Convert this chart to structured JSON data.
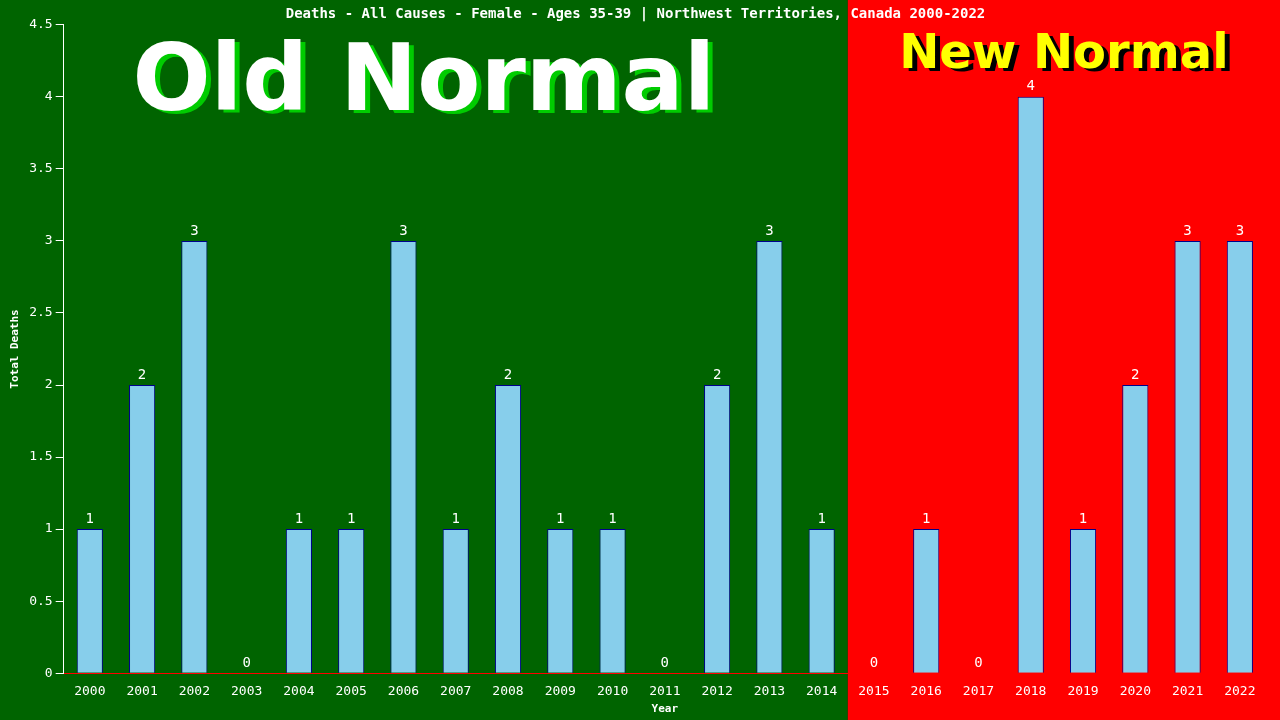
{
  "chart_data": {
    "type": "bar",
    "title": "Deaths - All Causes - Female - Ages 35-39 | Northwest Territories, Canada 2000-2022",
    "xlabel": "Year",
    "ylabel": "Total Deaths",
    "categories": [
      "2000",
      "2001",
      "2002",
      "2003",
      "2004",
      "2005",
      "2006",
      "2007",
      "2008",
      "2009",
      "2010",
      "2011",
      "2012",
      "2013",
      "2014",
      "2015",
      "2016",
      "2017",
      "2018",
      "2019",
      "2020",
      "2021",
      "2022"
    ],
    "values": [
      1,
      2,
      3,
      0,
      1,
      1,
      3,
      1,
      2,
      1,
      1,
      0,
      2,
      3,
      1,
      0,
      1,
      0,
      4,
      1,
      2,
      3,
      3
    ],
    "color": "#87ceeb",
    "ylim": [
      0,
      4.5
    ],
    "yticks": [
      0,
      0.5,
      1,
      1.5,
      2,
      2.5,
      3,
      3.5,
      4,
      4.5
    ],
    "bands": [
      {
        "axis": "x",
        "from": "2000",
        "to": "2014",
        "label": "Old Normal",
        "color": "#006400"
      },
      {
        "axis": "x",
        "from": "2015",
        "to": "2022",
        "label": "New Normal",
        "color": "#ff0000"
      }
    ],
    "data_labels": true,
    "grid": false,
    "legend": false
  }
}
